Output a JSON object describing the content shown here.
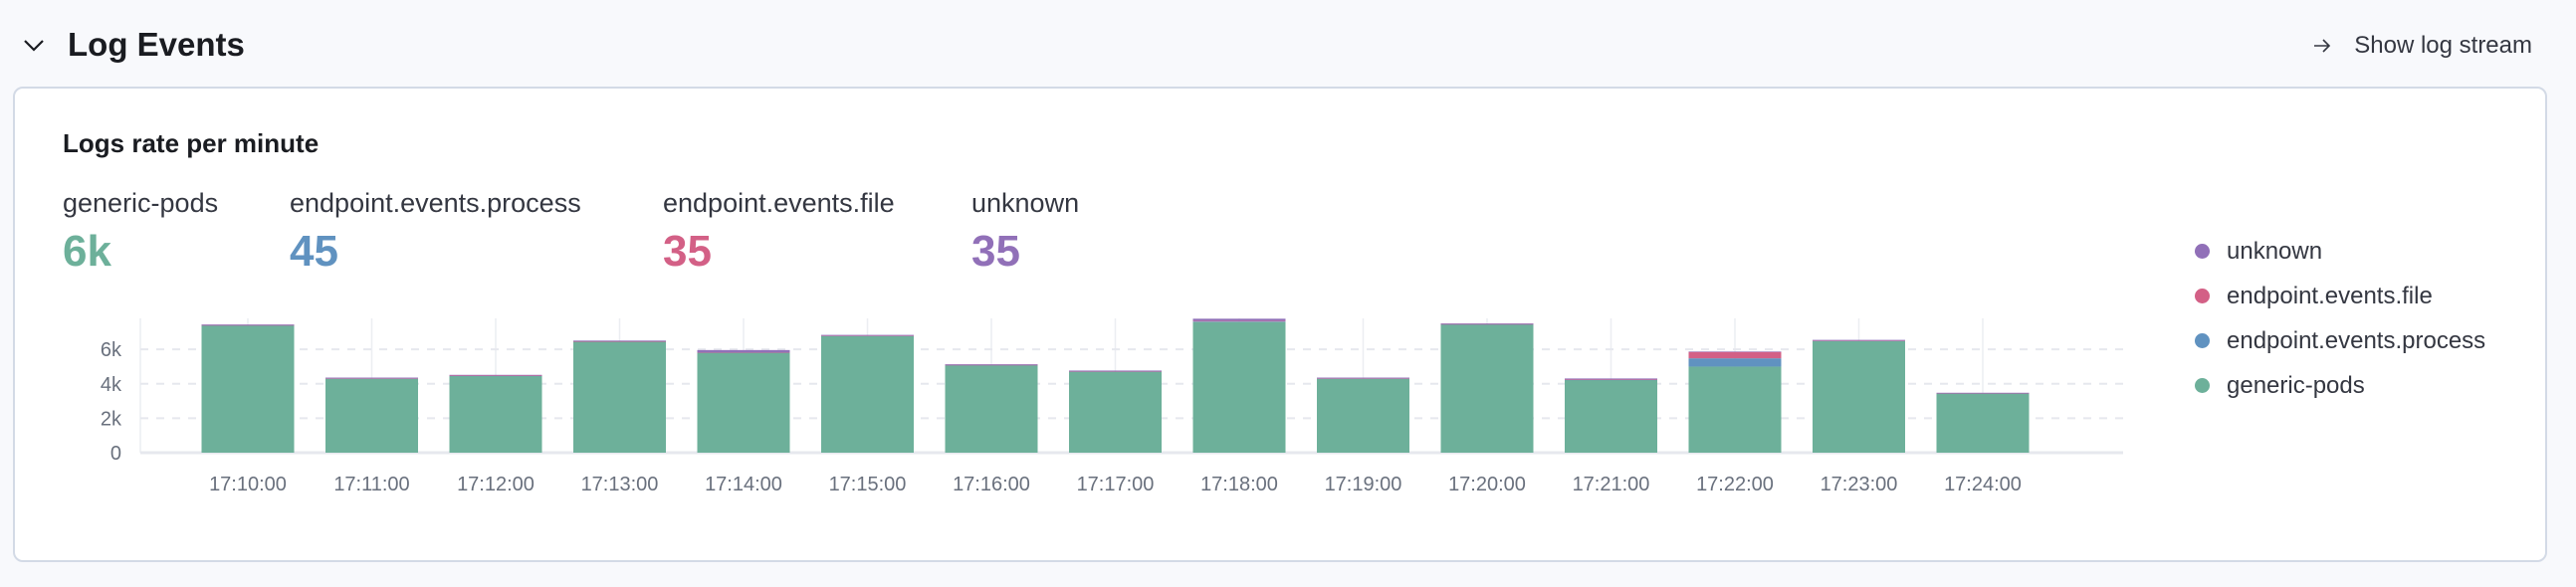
{
  "header": {
    "title": "Log Events",
    "show_log_stream": "Show log stream"
  },
  "card": {
    "title": "Logs rate per minute"
  },
  "stats": [
    {
      "label": "generic-pods",
      "value": "6k",
      "color": "#6dB09a"
    },
    {
      "label": "endpoint.events.process",
      "value": "45",
      "color": "#6092c0"
    },
    {
      "label": "endpoint.events.file",
      "value": "35",
      "color": "#d36086"
    },
    {
      "label": "unknown",
      "value": "35",
      "color": "#9170b8"
    }
  ],
  "legend": [
    {
      "label": "unknown",
      "color": "#9170b8"
    },
    {
      "label": "endpoint.events.file",
      "color": "#d36086"
    },
    {
      "label": "endpoint.events.process",
      "color": "#6092c0"
    },
    {
      "label": "generic-pods",
      "color": "#6dB09a"
    }
  ],
  "chart_data": {
    "type": "bar",
    "stacked": true,
    "categories": [
      "17:10:00",
      "17:11:00",
      "17:12:00",
      "17:13:00",
      "17:14:00",
      "17:15:00",
      "17:16:00",
      "17:17:00",
      "17:18:00",
      "17:19:00",
      "17:20:00",
      "17:21:00",
      "17:22:00",
      "17:23:00",
      "17:24:00"
    ],
    "yticks": [
      "0",
      "2k",
      "4k",
      "6k"
    ],
    "ylim": [
      0,
      7800
    ],
    "grid": true,
    "legend_position": "right",
    "series": [
      {
        "name": "generic-pods",
        "color": "#6dB09a",
        "values": [
          7390,
          4300,
          4460,
          6450,
          5810,
          6780,
          5080,
          4710,
          7590,
          4300,
          7450,
          4230,
          5000,
          6490,
          3440
        ]
      },
      {
        "name": "endpoint.events.process",
        "color": "#6092c0",
        "values": [
          10,
          10,
          10,
          10,
          10,
          10,
          10,
          10,
          30,
          10,
          10,
          10,
          480,
          10,
          10
        ]
      },
      {
        "name": "endpoint.events.file",
        "color": "#d36086",
        "values": [
          10,
          10,
          10,
          10,
          10,
          10,
          10,
          10,
          30,
          10,
          10,
          10,
          370,
          10,
          10
        ]
      },
      {
        "name": "unknown",
        "color": "#9170b8",
        "values": [
          40,
          40,
          40,
          40,
          130,
          40,
          40,
          40,
          130,
          40,
          40,
          60,
          30,
          40,
          20
        ]
      }
    ]
  }
}
